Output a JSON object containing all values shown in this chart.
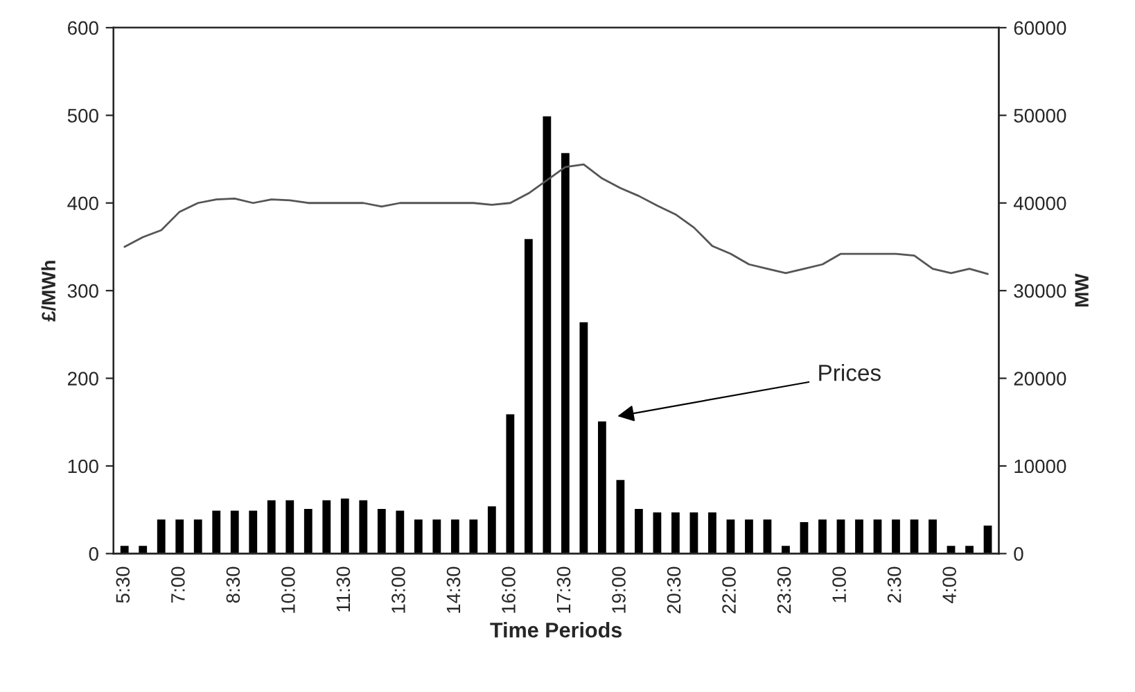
{
  "chart_data": {
    "type": "bar",
    "xlabel": "Time Periods",
    "ylabel": "£/MWh",
    "y2label": "MW",
    "categories": [
      "5:30",
      null,
      null,
      "7:00",
      null,
      null,
      "8:30",
      null,
      null,
      "10:00",
      null,
      null,
      "11:30",
      null,
      null,
      "13:00",
      null,
      null,
      "14:30",
      null,
      null,
      "16:00",
      null,
      null,
      "17:30",
      null,
      null,
      "19:00",
      null,
      null,
      "20:30",
      null,
      null,
      "22:00",
      null,
      null,
      "23:30",
      null,
      null,
      "1:00",
      null,
      null,
      "2:30",
      null,
      null,
      "4:00",
      null,
      null
    ],
    "series": [
      {
        "color": "#000000",
        "values": [
          10,
          10,
          40,
          40,
          40,
          50,
          50,
          50,
          62,
          62,
          52,
          62,
          64,
          62,
          52,
          50,
          40,
          40,
          40,
          40,
          55,
          160,
          360,
          500,
          458,
          265,
          152,
          85,
          52,
          48,
          48,
          48,
          48,
          40,
          40,
          40,
          10,
          37,
          40,
          40,
          40,
          40,
          40,
          40,
          40,
          10,
          10,
          33
        ]
      },
      {
        "type": "line",
        "axis": "y2",
        "color": "#555555",
        "values": [
          35000,
          36100,
          36900,
          39000,
          40000,
          40400,
          40500,
          40000,
          40400,
          40300,
          40000,
          40000,
          40000,
          40000,
          39600,
          40000,
          40000,
          40000,
          40000,
          40000,
          39800,
          40000,
          41100,
          42600,
          44100,
          44400,
          42800,
          41700,
          40800,
          39700,
          38700,
          37200,
          35100,
          34200,
          33000,
          32500,
          32000,
          32500,
          33000,
          34200,
          34200,
          34200,
          34200,
          34000,
          32500,
          32000,
          32500,
          31900
        ]
      }
    ],
    "ylim": [
      0,
      600
    ],
    "yticks": [
      0,
      100,
      200,
      300,
      400,
      500,
      600
    ],
    "y2lim": [
      0,
      60000
    ],
    "y2ticks": [
      0,
      10000,
      20000,
      30000,
      40000,
      50000,
      60000
    ],
    "annotations": [
      "Prices"
    ],
    "grid": false,
    "legend": false
  }
}
